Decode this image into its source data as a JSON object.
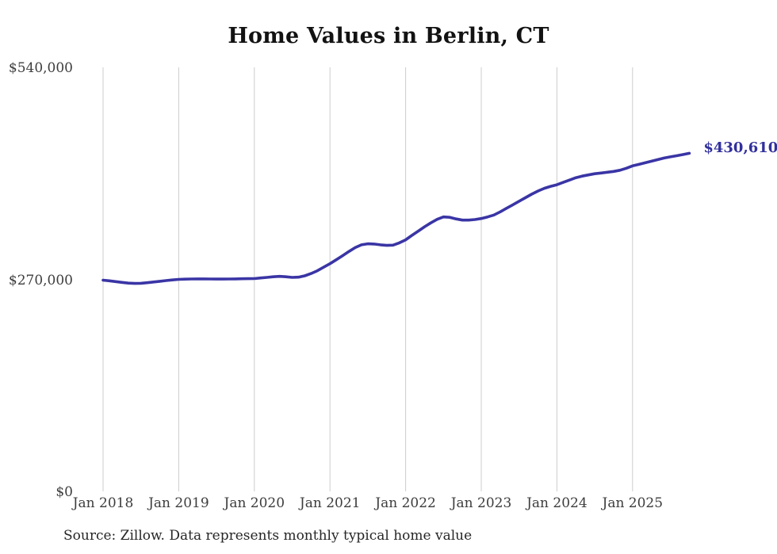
{
  "title": "Home Values in Berlin, CT",
  "source_note": "Source: Zillow. Data represents monthly typical home value",
  "colors": {
    "line": "#3a35a5",
    "end_label": "#32309c",
    "grid": "#cccccc",
    "axis_text": "#3d3d3d",
    "title_text": "#121212",
    "background": "#ffffff"
  },
  "chart_data": {
    "type": "line",
    "title": "Home Values in Berlin, CT",
    "series_name": "Typical home value",
    "end_label": "$430,610",
    "latest_value": 430610,
    "ylim": [
      0,
      540000
    ],
    "grid": "vertical-only",
    "legend": "none",
    "y_ticks": [
      {
        "label": "$540,000",
        "value": 540000
      },
      {
        "label": "$270,000",
        "value": 270000
      },
      {
        "label": "$0",
        "value": 0
      }
    ],
    "x_ticks": [
      "Jan 2018",
      "Jan 2019",
      "Jan 2020",
      "Jan 2021",
      "Jan 2022",
      "Jan 2023",
      "Jan 2024",
      "Jan 2025"
    ],
    "x": [
      "2018-01",
      "2018-02",
      "2018-03",
      "2018-04",
      "2018-05",
      "2018-06",
      "2018-07",
      "2018-08",
      "2018-09",
      "2018-10",
      "2018-11",
      "2018-12",
      "2019-01",
      "2019-02",
      "2019-03",
      "2019-04",
      "2019-05",
      "2019-06",
      "2019-07",
      "2019-08",
      "2019-09",
      "2019-10",
      "2019-11",
      "2019-12",
      "2020-01",
      "2020-02",
      "2020-03",
      "2020-04",
      "2020-05",
      "2020-06",
      "2020-07",
      "2020-08",
      "2020-09",
      "2020-10",
      "2020-11",
      "2020-12",
      "2021-01",
      "2021-02",
      "2021-03",
      "2021-04",
      "2021-05",
      "2021-06",
      "2021-07",
      "2021-08",
      "2021-09",
      "2021-10",
      "2021-11",
      "2021-12",
      "2022-01",
      "2022-02",
      "2022-03",
      "2022-04",
      "2022-05",
      "2022-06",
      "2022-07",
      "2022-08",
      "2022-09",
      "2022-10",
      "2022-11",
      "2022-12",
      "2023-01",
      "2023-02",
      "2023-03",
      "2023-04",
      "2023-05",
      "2023-06",
      "2023-07",
      "2023-08",
      "2023-09",
      "2023-10",
      "2023-11",
      "2023-12",
      "2024-01",
      "2024-02",
      "2024-03",
      "2024-04",
      "2024-05",
      "2024-06",
      "2024-07",
      "2024-08",
      "2024-09",
      "2024-10",
      "2024-11",
      "2024-12",
      "2025-01",
      "2025-02",
      "2025-03",
      "2025-04",
      "2025-05",
      "2025-06",
      "2025-07",
      "2025-08",
      "2025-09",
      "2025-10"
    ],
    "values": [
      269000,
      268200,
      267200,
      266200,
      265300,
      264900,
      265100,
      265800,
      266700,
      267600,
      268500,
      269300,
      270000,
      270300,
      270500,
      270600,
      270600,
      270500,
      270400,
      270400,
      270500,
      270600,
      270800,
      270900,
      271000,
      271800,
      272500,
      273300,
      273800,
      273300,
      272500,
      272800,
      274500,
      277500,
      281000,
      285500,
      290000,
      295000,
      300200,
      305500,
      310500,
      314000,
      315300,
      315000,
      314000,
      313300,
      313600,
      316500,
      320400,
      326000,
      331500,
      337000,
      342000,
      346500,
      349500,
      349000,
      347000,
      345500,
      345500,
      346200,
      347500,
      349500,
      352000,
      356000,
      360500,
      365000,
      369500,
      374000,
      378500,
      382500,
      386000,
      388500,
      390500,
      393500,
      396500,
      399500,
      401500,
      403000,
      404500,
      405500,
      406500,
      407500,
      409000,
      411500,
      414500,
      416500,
      418500,
      420500,
      422500,
      424500,
      426000,
      427500,
      429000,
      430610
    ]
  }
}
